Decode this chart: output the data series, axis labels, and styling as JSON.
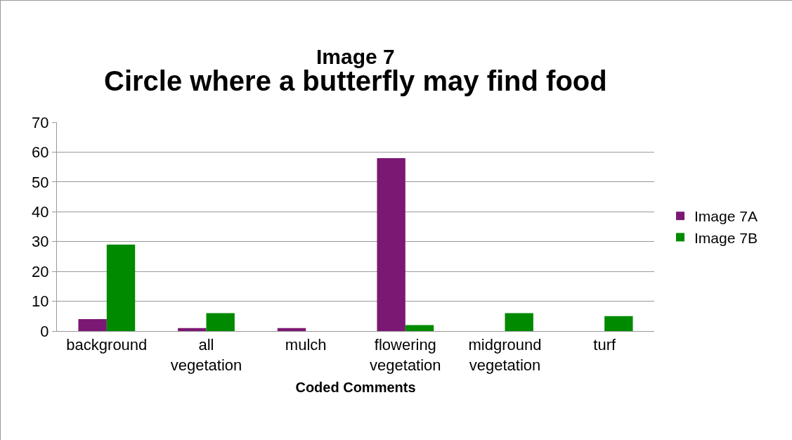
{
  "chart_data": {
    "type": "bar",
    "title": "Image 7",
    "subtitle": "Circle where a butterfly may find food",
    "xlabel": "Coded Comments",
    "categories": [
      "background",
      "all vegetation",
      "mulch",
      "flowering vegetation",
      "midground vegetation",
      "turf"
    ],
    "series": [
      {
        "name": "Image 7A",
        "color": "#7b1874",
        "values": [
          4,
          1,
          1,
          58,
          0,
          0
        ]
      },
      {
        "name": "Image 7B",
        "color": "#008a00",
        "values": [
          29,
          6,
          0,
          2,
          6,
          5
        ]
      }
    ],
    "ylim": [
      0,
      70
    ],
    "yticks": [
      0,
      10,
      20,
      30,
      40,
      50,
      60,
      70
    ],
    "grid": "y",
    "legend": "right"
  }
}
